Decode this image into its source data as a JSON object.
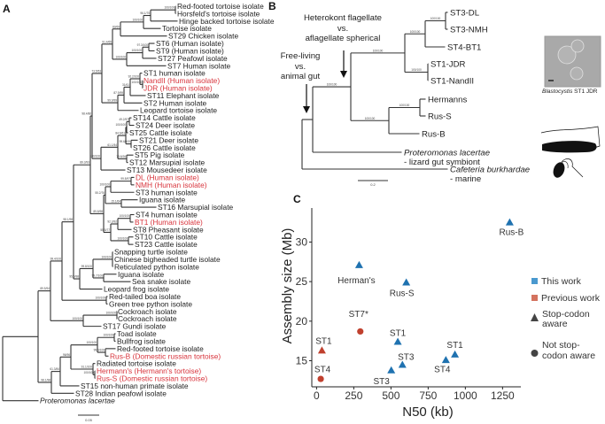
{
  "panels": {
    "a": "A",
    "b": "B",
    "c": "C"
  },
  "tree_a": {
    "leaves": [
      {
        "label": "Red-footed tortoise isolate"
      },
      {
        "label": "Horsfeld's tortoise isolate"
      },
      {
        "label": "Hinge backed tortoise isolate"
      },
      {
        "label": "Tortoise isolate"
      },
      {
        "label": "ST29 Chicken isolate"
      },
      {
        "label": "ST6 (Human isolate)"
      },
      {
        "label": "ST9 (Human isolate)"
      },
      {
        "label": "ST27 Peafowl isolate"
      },
      {
        "label": "ST7 Human isolate"
      },
      {
        "label": "ST1 human isolate"
      },
      {
        "label": "NandII (Human isolate)",
        "highlight": true
      },
      {
        "label": "JDR (Human isolate)",
        "highlight": true
      },
      {
        "label": "ST11 Elephant isolate"
      },
      {
        "label": "ST2 Human isolate"
      },
      {
        "label": "Leopard tortoise isolate"
      },
      {
        "label": "ST14 Cattle isolate"
      },
      {
        "label": "ST24 Deer isolate"
      },
      {
        "label": "ST25 Cattle isolate"
      },
      {
        "label": "ST21 Deer isolate"
      },
      {
        "label": "ST26 Cattle isolate"
      },
      {
        "label": "ST5 Pig isolate"
      },
      {
        "label": "ST12 Marsupial isolate"
      },
      {
        "label": "ST13 Mousedeer isolate"
      },
      {
        "label": "DL (Human isolate)",
        "highlight": true
      },
      {
        "label": "NMH (Human isolate)",
        "highlight": true
      },
      {
        "label": "ST3 human isolate"
      },
      {
        "label": "Iguana isolate"
      },
      {
        "label": "ST16 Marsupial isolate"
      },
      {
        "label": "ST4 human isolate"
      },
      {
        "label": "BT1 (Human isolate)",
        "highlight": true
      },
      {
        "label": "ST8 Pheasant isolate"
      },
      {
        "label": "ST10 Cattle isolate"
      },
      {
        "label": "ST23 Cattle isolate"
      },
      {
        "label": "Snapping turtle isolate"
      },
      {
        "label": "Chinese bigheaded turtle isolate"
      },
      {
        "label": "Reticulated python isolate"
      },
      {
        "label": "Iguana isolate"
      },
      {
        "label": "Sea snake isolate"
      },
      {
        "label": "Leopard frog isolate"
      },
      {
        "label": "Red-tailed boa isolate"
      },
      {
        "label": "Green tree python isolate"
      },
      {
        "label": "Cockroach isolate"
      },
      {
        "label": "Cockroach isolate"
      },
      {
        "label": "ST17 Gundi isolate"
      },
      {
        "label": "Toad isolate"
      },
      {
        "label": "Bullfrog isolate"
      },
      {
        "label": "Red-footed tortoise isolate"
      },
      {
        "label": "Rus-B (Domestic russian tortoise)",
        "highlight": true
      },
      {
        "label": "Radiated tortoise isolate"
      },
      {
        "label": "Hermann's (Hermann's tortoise)",
        "highlight": true
      },
      {
        "label": "Rus-S (Domestic russian tortoise)",
        "highlight": true
      },
      {
        "label": "ST15 non-human primate isolate"
      },
      {
        "label": "ST28 Indian peafowl isolate"
      },
      {
        "label": "Proteromonas lacertae",
        "italic": true
      }
    ],
    "supports": [
      "100/100",
      "96.1/75",
      "100/100",
      "83/69",
      "97.3/100",
      "100/100",
      "100/100",
      "91.4/65",
      "92.2/100",
      "100/100",
      "31/61",
      "87.9/99",
      "99.9/99",
      "73.5/53",
      "49.2/57",
      "100/100",
      "99.6/100",
      "84.6/61",
      "73.8/26",
      "61.1/54",
      "100/100",
      "98.4/86",
      "99.8/97",
      "100/100",
      "15.1/64",
      "55.2/76",
      "100/100",
      "92.3/92",
      "100/100",
      "55.5/77",
      "89.8/98",
      "89.3/93",
      "100/100",
      "99.7/100",
      "99.8/100",
      "95.5/98",
      "98.1/98",
      "100/100",
      "99.4/100",
      "100/100",
      "100/100",
      "89.5/94",
      "100/100",
      "99.5/100",
      "100/100",
      "100/100",
      "91.1/100",
      "96/96",
      "61.3/84",
      "98.1/98"
    ],
    "scale_label": "0.05"
  },
  "tree_b": {
    "leaves": [
      {
        "label": "ST3-DL"
      },
      {
        "label": "ST3-NMH"
      },
      {
        "label": "ST4-BT1"
      },
      {
        "label": "ST1-JDR"
      },
      {
        "label": "ST1-NandII"
      },
      {
        "label": "Hermanns"
      },
      {
        "label": "Rus-S"
      },
      {
        "label": "Rus-B"
      },
      {
        "label": "Proteromonas lacertae",
        "italic": true,
        "note": "- lizard gut symbiont"
      },
      {
        "label": "Cafeteria burkhardae",
        "italic": true,
        "note": "- marine"
      }
    ],
    "supports": [
      "100/100",
      "100/100",
      "100/100",
      "100/100",
      "100/100",
      "100/100",
      "100/100"
    ],
    "annotation_1": [
      "Heterokont flagellate",
      "vs.",
      "aflagellate spherical"
    ],
    "annotation_2": [
      "Free-living",
      "vs.",
      "animal gut"
    ],
    "scale_label": "0.2",
    "micrograph_caption_italic": "Blastocystis",
    "micrograph_caption": " ST1 JDR"
  },
  "chart_data": {
    "type": "scatter",
    "xlabel": "N50 (kb)",
    "ylabel": "Assembly size (Mb)",
    "xticks": [
      0,
      250,
      500,
      750,
      1000,
      1250
    ],
    "yticks": [
      15,
      20,
      25,
      30
    ],
    "xlim": [
      -32,
      1373
    ],
    "ylim": [
      11.7,
      34.3
    ],
    "grid": false,
    "legend_position": "right",
    "colors": {
      "This work": "#1f72b0",
      "Previous work": "#c0402e"
    },
    "legend": {
      "color": [
        {
          "label": "This work",
          "color": "#4a99cf"
        },
        {
          "label": "Previous work",
          "color": "#d4735f"
        }
      ],
      "shape": [
        {
          "label": [
            "Stop-codon",
            "aware"
          ],
          "marker": "triangle"
        },
        {
          "label": [
            "Not stop-",
            "codon aware"
          ],
          "marker": "circle"
        }
      ]
    },
    "points": [
      {
        "label": "Rus-B",
        "x": 1298,
        "y": 32.5,
        "group": "This work",
        "marker": "triangle"
      },
      {
        "label": "Herman's",
        "x": 286,
        "y": 27.1,
        "group": "This work",
        "marker": "triangle"
      },
      {
        "label": "Rus-S",
        "x": 603,
        "y": 24.9,
        "group": "This work",
        "marker": "triangle"
      },
      {
        "label": "ST7*",
        "x": 294,
        "y": 18.7,
        "group": "Previous work",
        "marker": "circle"
      },
      {
        "label": "ST1",
        "x": 36,
        "y": 16.3,
        "group": "Previous work",
        "marker": "triangle"
      },
      {
        "label": "ST4",
        "x": 28,
        "y": 12.7,
        "group": "Previous work",
        "marker": "circle"
      },
      {
        "label": "ST1",
        "x": 546,
        "y": 17.4,
        "group": "This work",
        "marker": "triangle"
      },
      {
        "label": "ST3",
        "x": 577,
        "y": 14.5,
        "group": "This work",
        "marker": "triangle"
      },
      {
        "label": "ST3",
        "x": 502,
        "y": 13.8,
        "group": "This work",
        "marker": "triangle"
      },
      {
        "label": "ST4",
        "x": 869,
        "y": 15.1,
        "group": "This work",
        "marker": "triangle"
      },
      {
        "label": "ST1",
        "x": 930,
        "y": 15.8,
        "group": "This work",
        "marker": "triangle"
      }
    ]
  }
}
